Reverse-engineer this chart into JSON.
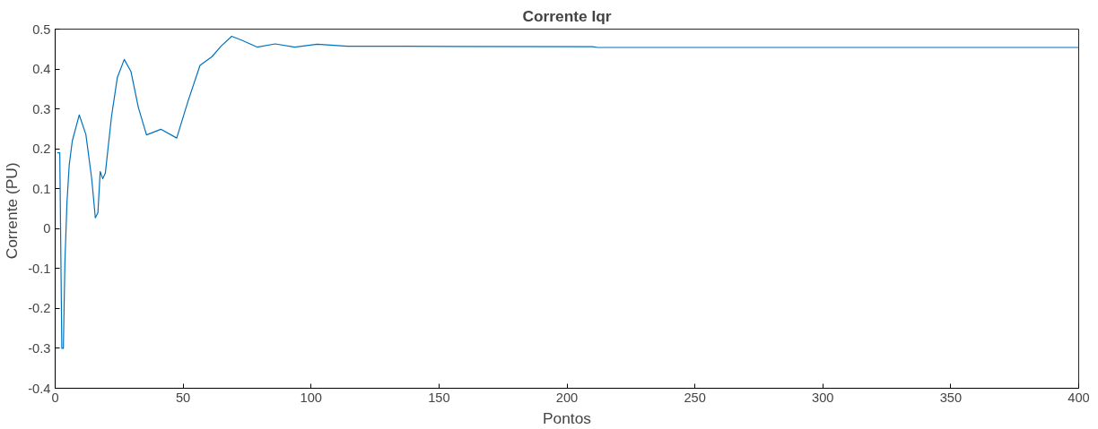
{
  "chart_data": {
    "type": "line",
    "title": "Corrente Iqr",
    "xlabel": "Pontos",
    "ylabel": "Corrente  (PU)",
    "xlim": [
      0,
      400
    ],
    "ylim": [
      -0.4,
      0.5
    ],
    "xticks": [
      0,
      50,
      100,
      150,
      200,
      250,
      300,
      350,
      400
    ],
    "yticks": [
      -0.4,
      -0.3,
      -0.2,
      -0.1,
      0,
      0.1,
      0.2,
      0.3,
      0.4,
      0.5
    ],
    "grid": false,
    "marker": "none",
    "line_style": "solid",
    "series": [
      {
        "color": "#0072bd",
        "x": [
          0.8,
          1.8,
          2.6,
          3.2,
          3.8,
          4.6,
          5.5,
          6.7,
          9.4,
          12,
          14.3,
          15.7,
          16.7,
          17.6,
          18.6,
          19.6,
          22,
          24.3,
          27,
          29.6,
          32.5,
          35.7,
          41.3,
          47.5,
          51.9,
          56.6,
          61.3,
          64.8,
          69,
          73,
          78.9,
          86,
          93.6,
          102.4,
          114.2,
          137,
          210,
          212,
          400
        ],
        "values": [
          0.19,
          0.19,
          -0.3,
          -0.3,
          -0.086,
          0.064,
          0.16,
          0.22,
          0.285,
          0.236,
          0.124,
          0.027,
          0.04,
          0.143,
          0.125,
          0.139,
          0.28,
          0.379,
          0.424,
          0.394,
          0.304,
          0.235,
          0.249,
          0.227,
          0.319,
          0.409,
          0.431,
          0.457,
          0.482,
          0.472,
          0.455,
          0.463,
          0.455,
          0.462,
          0.457,
          0.457,
          0.456,
          0.454,
          0.454
        ]
      }
    ]
  }
}
